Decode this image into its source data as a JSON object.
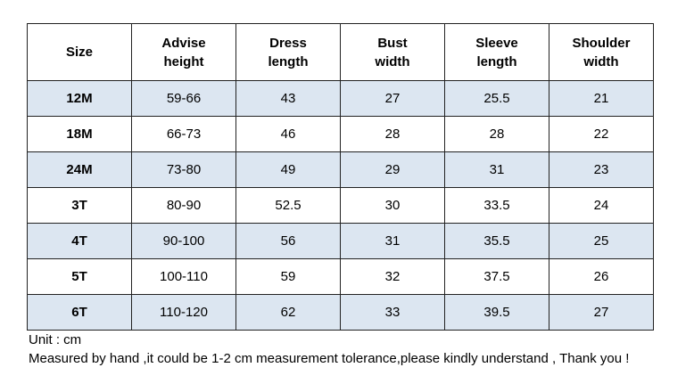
{
  "table": {
    "header": [
      [
        "Size"
      ],
      [
        "Advise",
        "height"
      ],
      [
        "Dress",
        "length"
      ],
      [
        "Bust",
        "width"
      ],
      [
        "Sleeve",
        "length"
      ],
      [
        "Shoulder",
        "width"
      ]
    ],
    "rows": [
      [
        "12M",
        "59-66",
        "43",
        "27",
        "25.5",
        "21"
      ],
      [
        "18M",
        "66-73",
        "46",
        "28",
        "28",
        "22"
      ],
      [
        "24M",
        "73-80",
        "49",
        "29",
        "31",
        "23"
      ],
      [
        "3T",
        "80-90",
        "52.5",
        "30",
        "33.5",
        "24"
      ],
      [
        "4T",
        "90-100",
        "56",
        "31",
        "35.5",
        "25"
      ],
      [
        "5T",
        "100-110",
        "59",
        "32",
        "37.5",
        "26"
      ],
      [
        "6T",
        "110-120",
        "62",
        "33",
        "39.5",
        "27"
      ]
    ]
  },
  "notes": [
    "Unit : cm",
    "Measured by hand ,it could be 1-2 cm measurement tolerance,please kindly understand , Thank you !"
  ]
}
